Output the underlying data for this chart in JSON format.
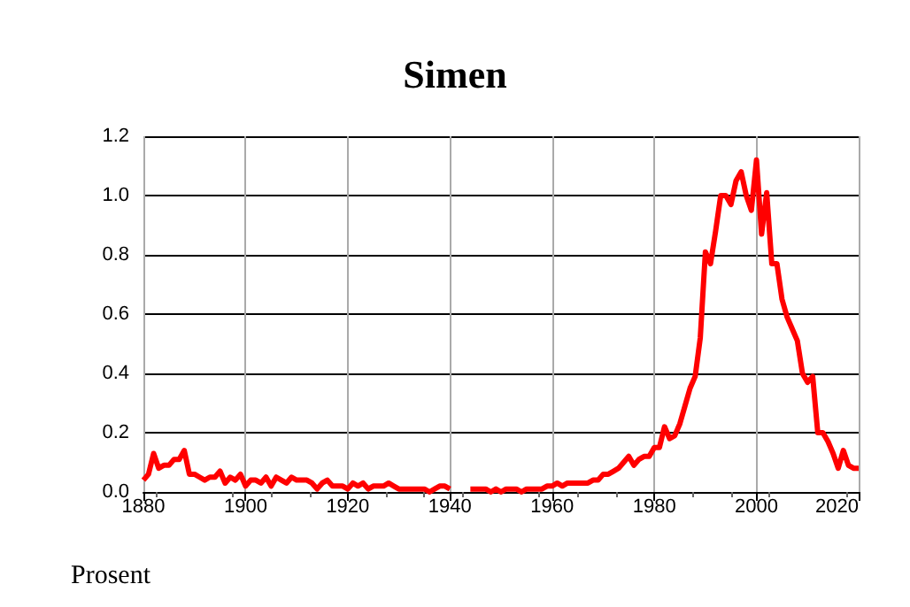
{
  "chart_data": {
    "type": "line",
    "title": "Simen",
    "ylabel": "Prosent",
    "x": [
      1880,
      1881,
      1882,
      1883,
      1884,
      1885,
      1886,
      1887,
      1888,
      1889,
      1890,
      1891,
      1892,
      1893,
      1894,
      1895,
      1896,
      1897,
      1898,
      1899,
      1900,
      1901,
      1902,
      1903,
      1904,
      1905,
      1906,
      1907,
      1908,
      1909,
      1910,
      1911,
      1912,
      1913,
      1914,
      1915,
      1916,
      1917,
      1918,
      1919,
      1920,
      1921,
      1922,
      1923,
      1924,
      1925,
      1926,
      1927,
      1928,
      1929,
      1930,
      1931,
      1932,
      1933,
      1934,
      1935,
      1936,
      1937,
      1938,
      1939,
      1940,
      1941,
      1942,
      1943,
      1944,
      1945,
      1946,
      1947,
      1948,
      1949,
      1950,
      1951,
      1952,
      1953,
      1954,
      1955,
      1956,
      1957,
      1958,
      1959,
      1960,
      1961,
      1962,
      1963,
      1964,
      1965,
      1966,
      1967,
      1968,
      1969,
      1970,
      1971,
      1972,
      1973,
      1974,
      1975,
      1976,
      1977,
      1978,
      1979,
      1980,
      1981,
      1982,
      1983,
      1984,
      1985,
      1986,
      1987,
      1988,
      1989,
      1990,
      1991,
      1992,
      1993,
      1994,
      1995,
      1996,
      1997,
      1998,
      1999,
      2000,
      2001,
      2002,
      2003,
      2004,
      2005,
      2006,
      2007,
      2008,
      2009,
      2010,
      2011,
      2012,
      2013,
      2014,
      2015,
      2016,
      2017,
      2018,
      2019,
      2020
    ],
    "series": [
      {
        "color": "#ff0000",
        "values": [
          0.04,
          0.06,
          0.13,
          0.08,
          0.09,
          0.09,
          0.11,
          0.11,
          0.14,
          0.06,
          0.06,
          0.05,
          0.04,
          0.05,
          0.05,
          0.07,
          0.03,
          0.05,
          0.04,
          0.06,
          0.02,
          0.04,
          0.04,
          0.03,
          0.05,
          0.02,
          0.05,
          0.04,
          0.03,
          0.05,
          0.04,
          0.04,
          0.04,
          0.03,
          0.01,
          0.03,
          0.04,
          0.02,
          0.02,
          0.02,
          0.01,
          0.03,
          0.02,
          0.03,
          0.01,
          0.02,
          0.02,
          0.02,
          0.03,
          0.02,
          0.01,
          0.01,
          0.01,
          0.01,
          0.01,
          0.01,
          0.0,
          0.01,
          0.02,
          0.02,
          0.01,
          null,
          null,
          null,
          0.01,
          0.01,
          0.01,
          0.01,
          0.0,
          0.01,
          0.0,
          0.01,
          0.01,
          0.01,
          0.0,
          0.01,
          0.01,
          0.01,
          0.01,
          0.02,
          0.02,
          0.03,
          0.02,
          0.03,
          0.03,
          0.03,
          0.03,
          0.03,
          0.04,
          0.04,
          0.06,
          0.06,
          0.07,
          0.08,
          0.1,
          0.12,
          0.09,
          0.11,
          0.12,
          0.12,
          0.15,
          0.15,
          0.22,
          0.18,
          0.19,
          0.23,
          0.29,
          0.35,
          0.39,
          0.52,
          0.81,
          0.77,
          0.88,
          1.0,
          1.0,
          0.97,
          1.05,
          1.08,
          1.0,
          0.95,
          1.12,
          0.87,
          1.01,
          0.77,
          0.77,
          0.65,
          0.59,
          0.55,
          0.51,
          0.4,
          0.37,
          0.39,
          0.2,
          0.2,
          0.17,
          0.13,
          0.08,
          0.14,
          0.09,
          0.08,
          0.08
        ]
      }
    ],
    "xlim": [
      1880,
      2020
    ],
    "xticks": [
      1880,
      1900,
      1920,
      1940,
      1960,
      1980,
      2000,
      2020
    ],
    "ylim": [
      0,
      1.2
    ],
    "yticks": [
      {
        "value": 0,
        "label": "0.0"
      },
      {
        "value": 0.2,
        "label": "0.2"
      },
      {
        "value": 0.4,
        "label": "0.4"
      },
      {
        "value": 0.6,
        "label": "0.6"
      },
      {
        "value": 0.8,
        "label": "0.8"
      },
      {
        "value": 1,
        "label": "1.0"
      },
      {
        "value": 1.2,
        "label": "1.2"
      }
    ],
    "grid": true
  }
}
